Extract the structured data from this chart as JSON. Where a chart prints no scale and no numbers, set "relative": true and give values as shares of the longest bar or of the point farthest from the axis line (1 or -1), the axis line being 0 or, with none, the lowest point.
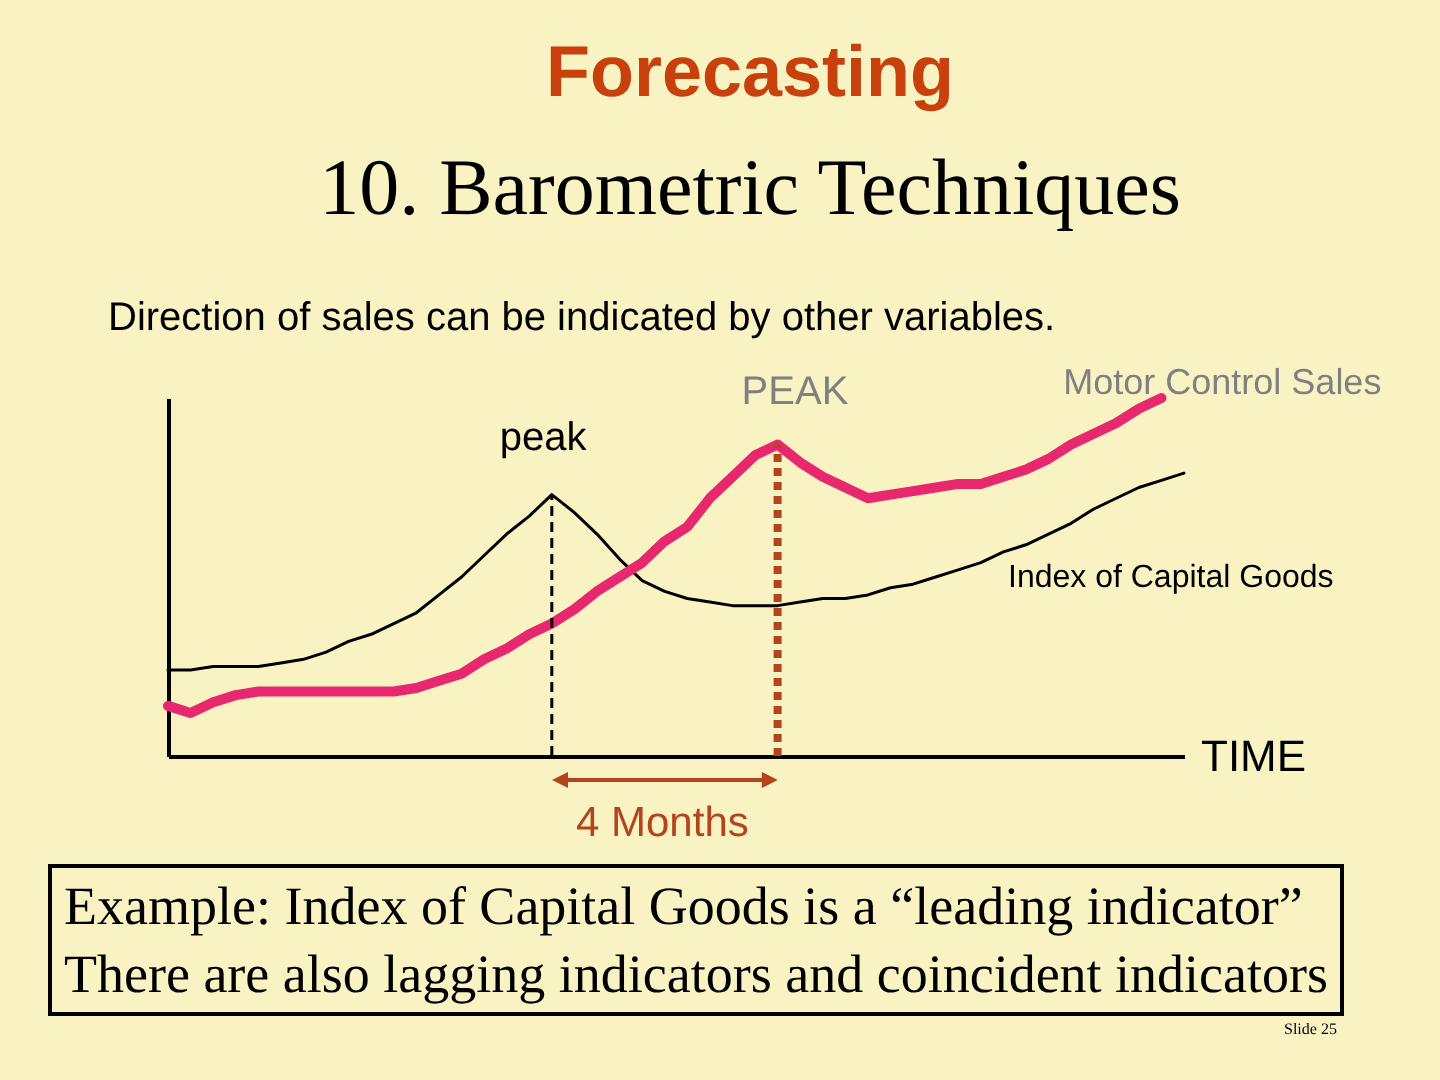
{
  "chart_data": {
    "type": "line",
    "title": "Forecasting",
    "subtitle": "10. Barometric Techniques",
    "xlabel": "TIME",
    "relative": true,
    "categories": [
      null,
      null,
      null,
      null,
      null,
      null,
      null,
      null,
      null,
      null,
      null,
      null,
      null,
      null,
      null,
      null,
      null,
      null,
      null,
      null,
      null,
      null,
      null,
      null,
      null,
      null,
      null,
      null,
      null,
      null,
      null,
      null,
      null,
      null,
      null,
      null,
      null,
      null,
      null,
      null,
      null,
      null,
      null,
      null,
      null,
      null
    ],
    "series": [
      {
        "name": "Index of Capital Goods",
        "color": "#000000",
        "values": [
          0.24,
          0.24,
          0.25,
          0.25,
          0.25,
          0.26,
          0.27,
          0.29,
          0.32,
          0.34,
          0.37,
          0.4,
          0.45,
          0.5,
          0.56,
          0.62,
          0.67,
          0.73,
          0.68,
          0.62,
          0.55,
          0.49,
          0.46,
          0.44,
          0.43,
          0.42,
          0.42,
          0.42,
          0.43,
          0.44,
          0.44,
          0.45,
          0.47,
          0.48,
          0.5,
          0.52,
          0.54,
          0.57,
          0.59,
          0.62,
          0.65,
          0.69,
          0.72,
          0.75,
          0.77,
          0.79
        ]
      },
      {
        "name": "Motor Control Sales",
        "color": "#e8286e",
        "values": [
          0.14,
          0.12,
          0.15,
          0.17,
          0.18,
          0.18,
          0.18,
          0.18,
          0.18,
          0.18,
          0.18,
          0.19,
          0.21,
          0.23,
          0.27,
          0.3,
          0.34,
          0.37,
          0.41,
          0.46,
          0.5,
          0.54,
          0.6,
          0.64,
          0.72,
          0.78,
          0.84,
          0.87,
          0.82,
          0.78,
          0.75,
          0.72,
          0.73,
          0.74,
          0.75,
          0.76,
          0.76,
          0.78,
          0.8,
          0.83,
          0.87,
          0.9,
          0.93,
          0.97,
          1.0,
          null
        ]
      }
    ],
    "annotations": [
      "Direction of sales can be indicated by other variables.",
      "peak",
      "PEAK",
      "4 Months",
      "Example:  Index of Capital Goods is a “leading indicator”\nThere are also lagging indicators and coincident indicators",
      "Slide 25"
    ]
  }
}
